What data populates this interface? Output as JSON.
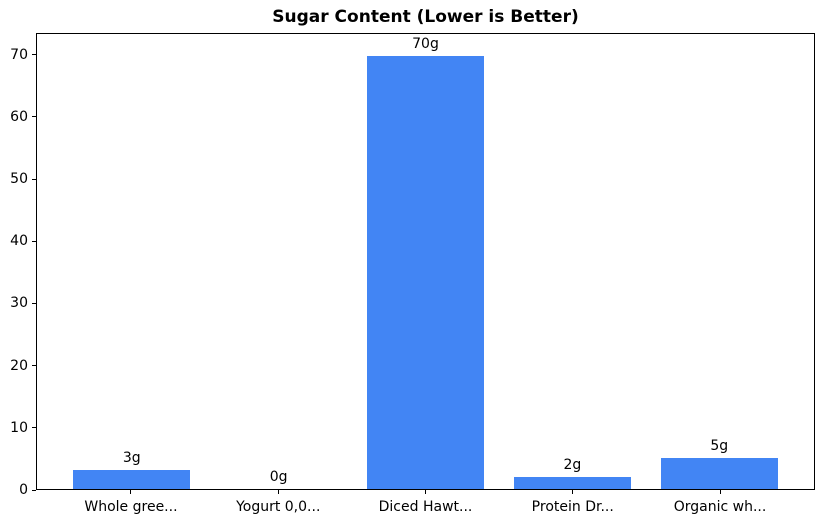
{
  "chart_data": {
    "type": "bar",
    "title": "Sugar Content (Lower is Better)",
    "categories": [
      "Whole gree...",
      "Yogurt 0,0...",
      "Diced Hawt...",
      "Protein Dr...",
      "Organic wh..."
    ],
    "values": [
      3,
      0,
      70,
      2,
      5
    ],
    "value_labels": [
      "3g",
      "0g",
      "70g",
      "2g",
      "5g"
    ],
    "xlabel": "",
    "ylabel": "",
    "ylim": [
      0,
      73.5
    ],
    "xlim": [
      -0.645,
      4.645
    ],
    "yticks": [
      0,
      10,
      20,
      30,
      40,
      50,
      60,
      70
    ],
    "bar_width_data_units": 0.8,
    "grid": false,
    "legend": "none",
    "colors": {
      "bar": "#4285F4",
      "axis": "#000000",
      "text": "#000000",
      "background": "#ffffff"
    }
  }
}
